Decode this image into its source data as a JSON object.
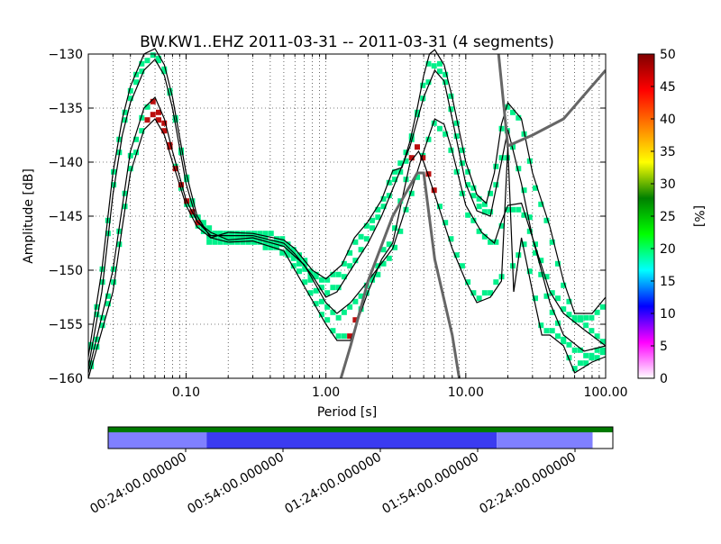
{
  "chart_data": {
    "type": "ppsd",
    "title": "BW.KW1..EHZ   2011-03-31 -- 2011-03-31  (4 segments)",
    "xlabel": "Period [s]",
    "ylabel": "Amplitude [dB]",
    "x_scale": "log",
    "xlim": [
      0.02,
      100
    ],
    "ylim": [
      -160,
      -130
    ],
    "x_ticks": [
      {
        "value": 0.1,
        "label": "0.10"
      },
      {
        "value": 1,
        "label": "1.00"
      },
      {
        "value": 10,
        "label": "10.00"
      },
      {
        "value": 100,
        "label": "100.00"
      }
    ],
    "y_ticks": [
      {
        "value": -130,
        "label": "−130"
      },
      {
        "value": -135,
        "label": "−135"
      },
      {
        "value": -140,
        "label": "−140"
      },
      {
        "value": -145,
        "label": "−145"
      },
      {
        "value": -150,
        "label": "−150"
      },
      {
        "value": -155,
        "label": "−155"
      },
      {
        "value": -160,
        "label": "−160"
      }
    ],
    "grid": true,
    "colorbar": {
      "label": "[%]",
      "min": 0,
      "max": 50,
      "ticks": [
        {
          "value": 0,
          "label": "0"
        },
        {
          "value": 5,
          "label": "5"
        },
        {
          "value": 10,
          "label": "10"
        },
        {
          "value": 15,
          "label": "15"
        },
        {
          "value": 20,
          "label": "20"
        },
        {
          "value": 25,
          "label": "25"
        },
        {
          "value": 30,
          "label": "30"
        },
        {
          "value": 35,
          "label": "35"
        },
        {
          "value": 40,
          "label": "40"
        },
        {
          "value": 45,
          "label": "45"
        },
        {
          "value": 50,
          "label": "50"
        }
      ],
      "colors": [
        "#ffffff",
        "#ff00ff",
        "#0000ff",
        "#00ffff",
        "#00ff00",
        "#008000",
        "#ffff00",
        "#ff8000",
        "#ff0000",
        "#800000"
      ]
    },
    "curves": [
      {
        "name": "upper",
        "points": [
          [
            0.02,
            -158
          ],
          [
            0.025,
            -150
          ],
          [
            0.03,
            -141
          ],
          [
            0.035,
            -136
          ],
          [
            0.04,
            -133
          ],
          [
            0.05,
            -130
          ],
          [
            0.06,
            -129.5
          ],
          [
            0.07,
            -131
          ],
          [
            0.08,
            -134
          ],
          [
            0.1,
            -141
          ],
          [
            0.12,
            -145
          ],
          [
            0.15,
            -147
          ],
          [
            0.2,
            -146.5
          ],
          [
            0.3,
            -146.6
          ],
          [
            0.5,
            -147.2
          ],
          [
            0.6,
            -148
          ],
          [
            0.8,
            -150
          ],
          [
            1,
            -150.8
          ],
          [
            1.3,
            -149.5
          ],
          [
            1.6,
            -147
          ],
          [
            2,
            -145.5
          ],
          [
            2.5,
            -143.5
          ],
          [
            3,
            -140.8
          ],
          [
            3.5,
            -140.5
          ],
          [
            4,
            -138
          ],
          [
            4.5,
            -135
          ],
          [
            5,
            -132
          ],
          [
            5.5,
            -130
          ],
          [
            6,
            -129.6
          ],
          [
            7,
            -131
          ],
          [
            8,
            -134
          ],
          [
            10,
            -140
          ],
          [
            12,
            -143
          ],
          [
            14,
            -143.8
          ],
          [
            16,
            -141
          ],
          [
            18,
            -136.5
          ],
          [
            20,
            -134.5
          ],
          [
            25,
            -136
          ],
          [
            30,
            -141
          ],
          [
            40,
            -146
          ],
          [
            50,
            -151
          ],
          [
            60,
            -154
          ],
          [
            80,
            -154
          ],
          [
            100,
            -152.5
          ]
        ]
      },
      {
        "name": "upper-mid",
        "points": [
          [
            0.02,
            -159
          ],
          [
            0.025,
            -152
          ],
          [
            0.03,
            -143
          ],
          [
            0.035,
            -137.5
          ],
          [
            0.04,
            -134.5
          ],
          [
            0.05,
            -131.5
          ],
          [
            0.06,
            -130.5
          ],
          [
            0.07,
            -132
          ],
          [
            0.08,
            -135
          ],
          [
            0.1,
            -142
          ],
          [
            0.12,
            -145.5
          ],
          [
            0.15,
            -146.8
          ],
          [
            0.2,
            -146.8
          ],
          [
            0.3,
            -146.8
          ],
          [
            0.5,
            -147.5
          ],
          [
            0.6,
            -148.5
          ],
          [
            0.8,
            -150.5
          ],
          [
            1,
            -152.5
          ],
          [
            1.2,
            -152
          ],
          [
            1.5,
            -150
          ],
          [
            2,
            -147.5
          ],
          [
            2.5,
            -145
          ],
          [
            3,
            -142.5
          ],
          [
            4,
            -138.5
          ],
          [
            5,
            -134
          ],
          [
            6,
            -131.5
          ],
          [
            7,
            -132.5
          ],
          [
            8,
            -136
          ],
          [
            10,
            -142
          ],
          [
            12,
            -144.5
          ],
          [
            15,
            -145
          ],
          [
            18,
            -140
          ],
          [
            20,
            -137
          ],
          [
            25,
            -142
          ],
          [
            30,
            -147
          ],
          [
            40,
            -152
          ],
          [
            50,
            -154
          ],
          [
            70,
            -155.5
          ],
          [
            100,
            -157
          ]
        ]
      },
      {
        "name": "median",
        "points": [
          [
            0.02,
            -159.5
          ],
          [
            0.03,
            -150
          ],
          [
            0.04,
            -139
          ],
          [
            0.05,
            -135
          ],
          [
            0.06,
            -134
          ],
          [
            0.07,
            -136
          ],
          [
            0.08,
            -139
          ],
          [
            0.1,
            -143.5
          ],
          [
            0.12,
            -145.5
          ],
          [
            0.15,
            -146.5
          ],
          [
            0.2,
            -147.2
          ],
          [
            0.3,
            -147
          ],
          [
            0.5,
            -147.8
          ],
          [
            0.7,
            -149.5
          ],
          [
            1,
            -153
          ],
          [
            1.2,
            -154
          ],
          [
            1.5,
            -153
          ],
          [
            2,
            -151
          ],
          [
            3,
            -148
          ],
          [
            4,
            -143
          ],
          [
            5,
            -139
          ],
          [
            6,
            -136
          ],
          [
            7,
            -136.5
          ],
          [
            8,
            -139
          ],
          [
            10,
            -144
          ],
          [
            13,
            -146.5
          ],
          [
            16,
            -147.5
          ],
          [
            18,
            -145.5
          ],
          [
            20,
            -144
          ],
          [
            25,
            -143.8
          ],
          [
            30,
            -147
          ],
          [
            40,
            -153
          ],
          [
            50,
            -156
          ],
          [
            70,
            -157.5
          ],
          [
            100,
            -157
          ]
        ]
      },
      {
        "name": "lower",
        "points": [
          [
            0.02,
            -160
          ],
          [
            0.03,
            -152
          ],
          [
            0.035,
            -146
          ],
          [
            0.04,
            -141
          ],
          [
            0.05,
            -137
          ],
          [
            0.06,
            -136
          ],
          [
            0.07,
            -137.5
          ],
          [
            0.08,
            -140
          ],
          [
            0.1,
            -144
          ],
          [
            0.12,
            -146
          ],
          [
            0.15,
            -147
          ],
          [
            0.2,
            -147.4
          ],
          [
            0.3,
            -147.3
          ],
          [
            0.5,
            -148.2
          ],
          [
            0.7,
            -151.5
          ],
          [
            1,
            -155
          ],
          [
            1.2,
            -156.5
          ],
          [
            1.5,
            -156.5
          ],
          [
            2,
            -152
          ],
          [
            2.5,
            -149
          ],
          [
            3,
            -147.5
          ],
          [
            4,
            -140
          ],
          [
            4.6,
            -139
          ],
          [
            5,
            -140
          ],
          [
            6,
            -143
          ],
          [
            8,
            -148
          ],
          [
            10,
            -151
          ],
          [
            12,
            -153
          ],
          [
            15,
            -152.5
          ],
          [
            18,
            -151
          ],
          [
            20,
            -138.5
          ],
          [
            22,
            -152
          ],
          [
            25,
            -147
          ],
          [
            30,
            -152
          ],
          [
            35,
            -156
          ],
          [
            40,
            -156
          ],
          [
            50,
            -157
          ],
          [
            60,
            -159.5
          ],
          [
            80,
            -158.5
          ],
          [
            100,
            -158
          ]
        ]
      }
    ],
    "noise_model_lines": [
      {
        "name": "model-left",
        "points": [
          [
            1.15,
            -162
          ],
          [
            1.5,
            -157
          ],
          [
            2,
            -151
          ],
          [
            3,
            -145
          ],
          [
            4.5,
            -141
          ],
          [
            5,
            -141
          ],
          [
            6,
            -149
          ],
          [
            8,
            -156
          ],
          [
            9.5,
            -162
          ]
        ]
      },
      {
        "name": "model-right",
        "points": [
          [
            17,
            -129.5
          ],
          [
            20,
            -138.5
          ],
          [
            30,
            -137.5
          ],
          [
            50,
            -136
          ],
          [
            100,
            -131.5
          ]
        ]
      }
    ],
    "segment_bar": {
      "time_labels": [
        "00:24:00.000000",
        "00:54:00.000000",
        "01:24:00.000000",
        "01:54:00.000000",
        "02:24:00.000000"
      ],
      "coverage": [
        {
          "from": 0.0,
          "to": 0.195,
          "color": "#8080ff"
        },
        {
          "from": 0.195,
          "to": 0.77,
          "color": "#3b3bf0"
        },
        {
          "from": 0.77,
          "to": 0.96,
          "color": "#8080ff"
        },
        {
          "from": 0.96,
          "to": 1.0,
          "color": "#ffffff"
        }
      ],
      "top_color": "#007a00"
    }
  }
}
